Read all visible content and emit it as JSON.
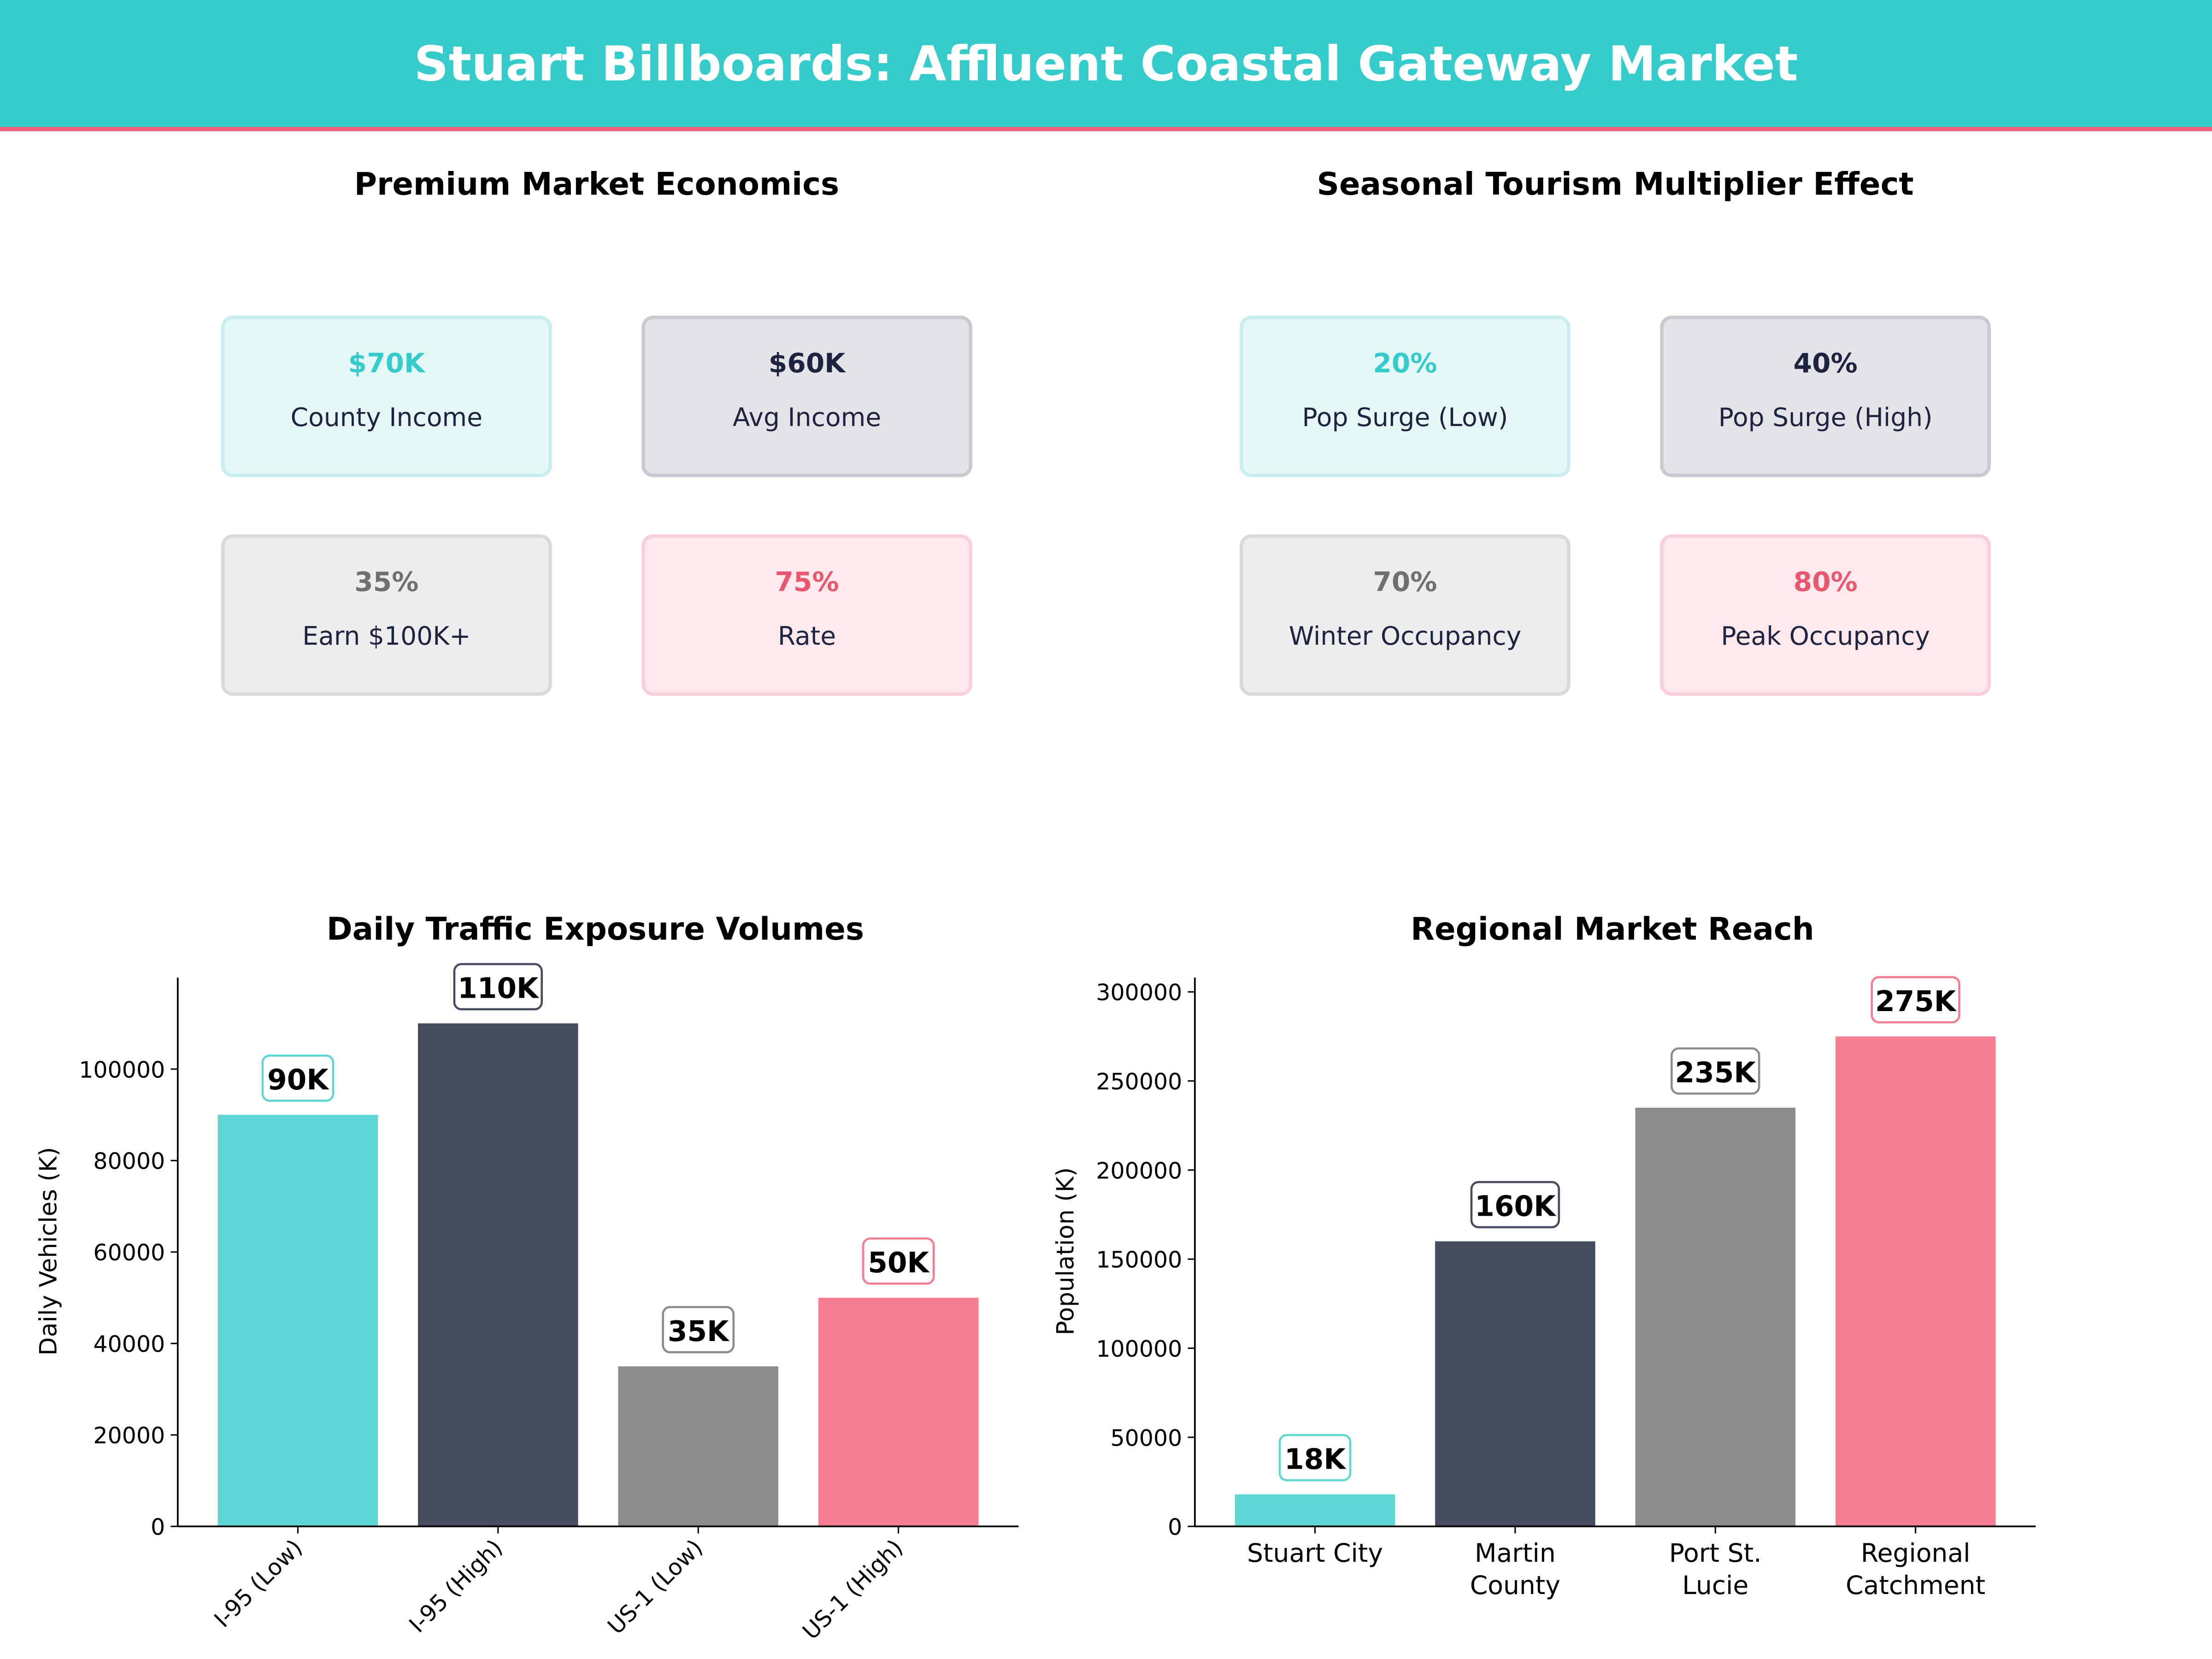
{
  "header": {
    "title": "Stuart Billboards: Affluent Coastal Gateway Market",
    "bg_color": "#36CBCB",
    "accent_line_color": "#F0607A"
  },
  "panels": [
    {
      "title": "Premium Market Economics",
      "cards": [
        {
          "value": "$70K",
          "label": "County Income",
          "theme": "teal"
        },
        {
          "value": "$60K",
          "label": "Avg Income",
          "theme": "dark"
        },
        {
          "value": "35%",
          "label": "Earn $100K+",
          "theme": "gray"
        },
        {
          "value": "75%",
          "label": "Rate",
          "theme": "pink"
        }
      ]
    },
    {
      "title": "Seasonal Tourism Multiplier Effect",
      "cards": [
        {
          "value": "20%",
          "label": "Pop Surge (Low)",
          "theme": "teal"
        },
        {
          "value": "40%",
          "label": "Pop Surge (High)",
          "theme": "dark"
        },
        {
          "value": "70%",
          "label": "Winter Occupancy",
          "theme": "gray"
        },
        {
          "value": "80%",
          "label": "Peak Occupancy",
          "theme": "pink"
        }
      ]
    }
  ],
  "themes": {
    "teal": {
      "bg": "#E6F7F7",
      "border": "#C8EEEE",
      "value": "#36CBCB"
    },
    "dark": {
      "bg": "#E3E4E8",
      "border": "#C9CAD0",
      "value": "#1E2340"
    },
    "gray": {
      "bg": "#EDEDED",
      "border": "#DADADA",
      "value": "#707070"
    },
    "pink": {
      "bg": "#FDE9EC",
      "border": "#F9D0D8",
      "value": "#E8566F"
    }
  },
  "chart_data": [
    {
      "type": "bar",
      "title": "Daily Traffic Exposure Volumes",
      "xlabel": "",
      "ylabel": "Daily Vehicles (K)",
      "categories": [
        "I-95 (Low)",
        "I-95 (High)",
        "US-1 (Low)",
        "US-1 (High)"
      ],
      "values": [
        90000,
        110000,
        35000,
        50000
      ],
      "data_labels": [
        "90K",
        "110K",
        "35K",
        "50K"
      ],
      "colors": [
        "#5DD6D4",
        "#464B60",
        "#8C8C8C",
        "#F57D91"
      ],
      "ylim": [
        0,
        120000
      ],
      "yticks": [
        0,
        20000,
        40000,
        60000,
        80000,
        100000
      ],
      "xtick_rotation": 45,
      "grid": false
    },
    {
      "type": "bar",
      "title": "Regional Market Reach",
      "xlabel": "",
      "ylabel": "Population (K)",
      "categories": [
        "Stuart City",
        "Martin County",
        "Port St. Lucie",
        "Regional Catchment"
      ],
      "category_lines": [
        [
          "Stuart City"
        ],
        [
          "Martin",
          "County"
        ],
        [
          "Port St.",
          "Lucie"
        ],
        [
          "Regional",
          "Catchment"
        ]
      ],
      "values": [
        18000,
        160000,
        235000,
        275000
      ],
      "data_labels": [
        "18K",
        "160K",
        "235K",
        "275K"
      ],
      "colors": [
        "#5DD6D4",
        "#464B60",
        "#8C8C8C",
        "#F57D91"
      ],
      "ylim": [
        0,
        308000
      ],
      "yticks": [
        0,
        50000,
        100000,
        150000,
        200000,
        250000,
        300000
      ],
      "xtick_rotation": 0,
      "grid": false
    }
  ]
}
